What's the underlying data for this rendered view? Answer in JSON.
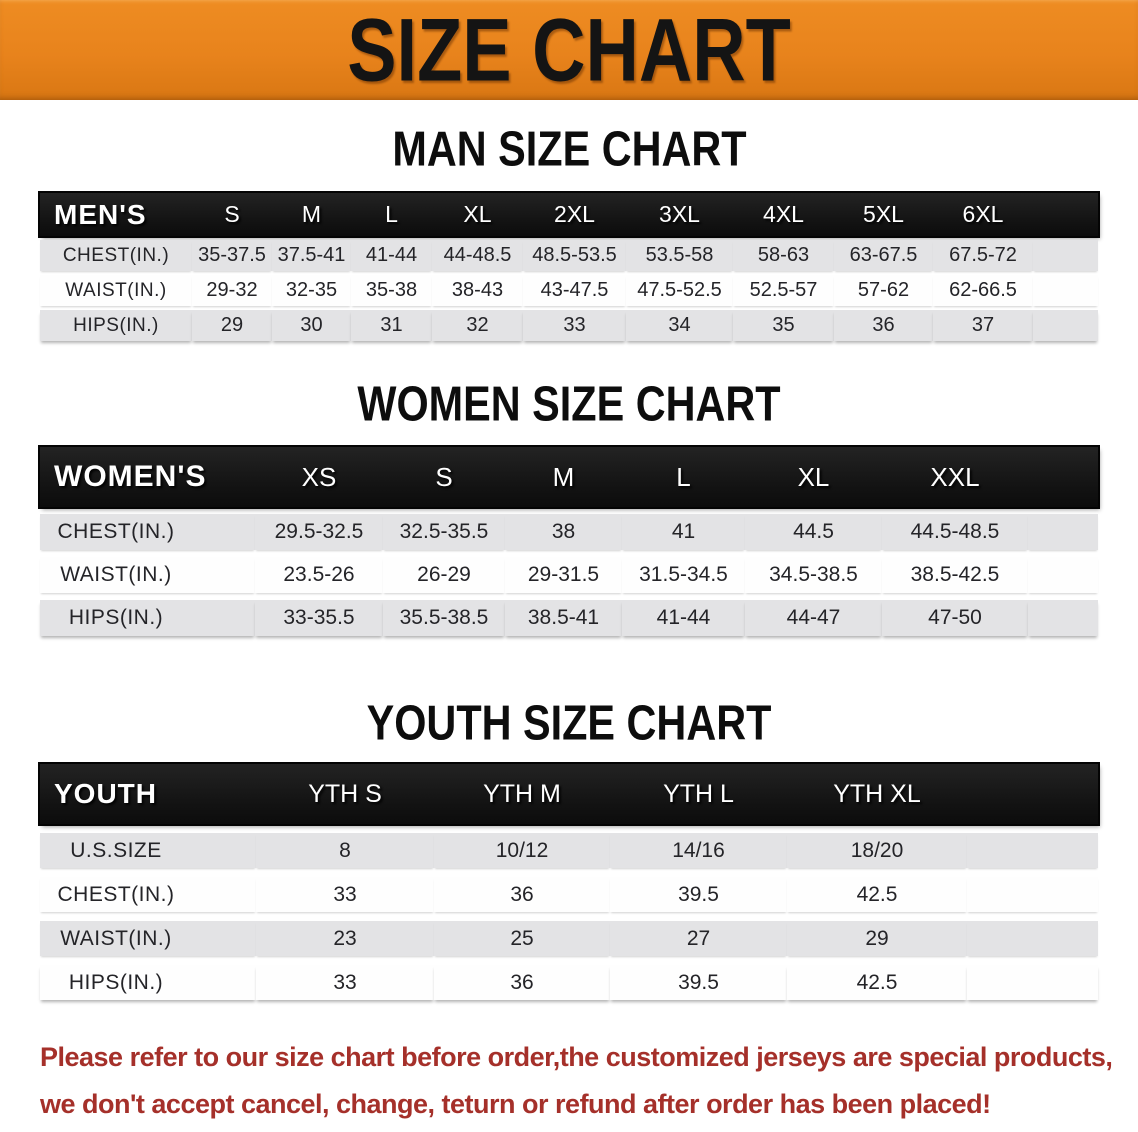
{
  "banner": {
    "title": "SIZE CHART"
  },
  "sections": [
    {
      "id": "men",
      "title": "MAN SIZE CHART",
      "header_label": "MEN'S",
      "columns": [
        "S",
        "M",
        "L",
        "XL",
        "2XL",
        "3XL",
        "4XL",
        "5XL",
        "6XL"
      ],
      "rows": [
        {
          "label": "CHEST(IN.)",
          "values": [
            "35-37.5",
            "37.5-41",
            "41-44",
            "44-48.5",
            "48.5-53.5",
            "53.5-58",
            "58-63",
            "63-67.5",
            "67.5-72"
          ]
        },
        {
          "label": "WAIST(IN.)",
          "values": [
            "29-32",
            "32-35",
            "35-38",
            "38-43",
            "43-47.5",
            "47.5-52.5",
            "52.5-57",
            "57-62",
            "62-66.5"
          ]
        },
        {
          "label": "HIPS(IN.)",
          "values": [
            "29",
            "30",
            "31",
            "32",
            "33",
            "34",
            "35",
            "36",
            "37"
          ]
        }
      ]
    },
    {
      "id": "women",
      "title": "WOMEN SIZE CHART",
      "header_label": "WOMEN'S",
      "columns": [
        "XS",
        "S",
        "M",
        "L",
        "XL",
        "XXL"
      ],
      "rows": [
        {
          "label": "CHEST(IN.)",
          "values": [
            "29.5-32.5",
            "32.5-35.5",
            "38",
            "41",
            "44.5",
            "44.5-48.5"
          ]
        },
        {
          "label": "WAIST(IN.)",
          "values": [
            "23.5-26",
            "26-29",
            "29-31.5",
            "31.5-34.5",
            "34.5-38.5",
            "38.5-42.5"
          ]
        },
        {
          "label": "HIPS(IN.)",
          "values": [
            "33-35.5",
            "35.5-38.5",
            "38.5-41",
            "41-44",
            "44-47",
            "47-50"
          ]
        }
      ]
    },
    {
      "id": "youth",
      "title": "YOUTH SIZE CHART",
      "header_label": "YOUTH",
      "columns": [
        "YTH S",
        "YTH M",
        "YTH L",
        "YTH XL"
      ],
      "rows": [
        {
          "label": "U.S.SIZE",
          "values": [
            "8",
            "10/12",
            "14/16",
            "18/20"
          ]
        },
        {
          "label": "CHEST(IN.)",
          "values": [
            "33",
            "36",
            "39.5",
            "42.5"
          ]
        },
        {
          "label": "WAIST(IN.)",
          "values": [
            "23",
            "25",
            "27",
            "29"
          ]
        },
        {
          "label": "HIPS(IN.)",
          "values": [
            "33",
            "36",
            "39.5",
            "42.5"
          ]
        }
      ]
    }
  ],
  "disclaimer": {
    "line1": "Please refer to our size chart before order,the customized jerseys are special products,",
    "line2": "we don't accept cancel, change, teturn or refund after order has been placed!"
  },
  "colors": {
    "banner_bg": "#E8831C",
    "banner_text": "#141414",
    "header_bar_bg": "#161616",
    "header_bar_text": "#FFFFFF",
    "stripe_row_bg": "#E3E3E5",
    "cell_text": "#242428",
    "disclaimer_text": "#A5302A"
  }
}
